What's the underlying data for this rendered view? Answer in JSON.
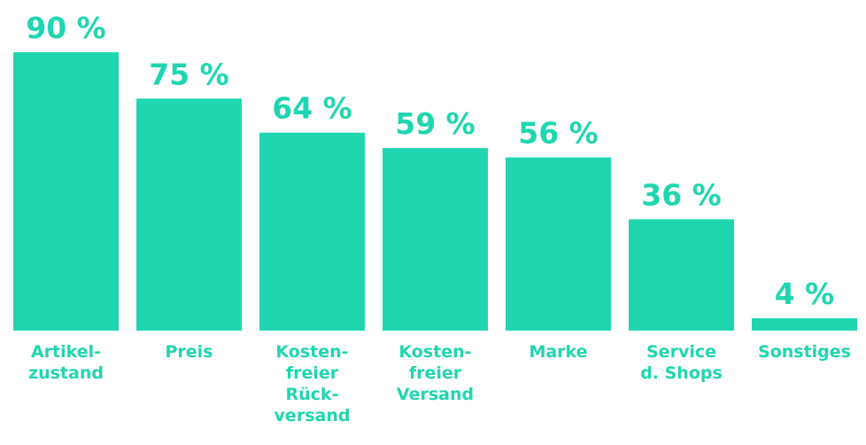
{
  "chart_data": {
    "type": "bar",
    "categories": [
      "Artikel-\nzustand",
      "Preis",
      "Kosten-\nfreier\nRück-\nversand",
      "Kosten-\nfreier\nVersand",
      "Marke",
      "Service\nd. Shops",
      "Sonstiges"
    ],
    "values": [
      90,
      75,
      64,
      59,
      56,
      36,
      4
    ],
    "value_labels": [
      "90 %",
      "75 %",
      "64 %",
      "59 %",
      "56 %",
      "36 %",
      "4 %"
    ],
    "color": "#20d6b0"
  }
}
